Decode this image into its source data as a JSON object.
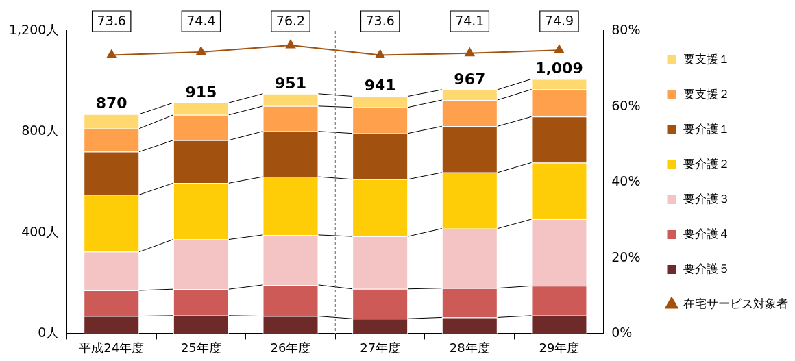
{
  "chart_data": {
    "type": "bar",
    "stacked": true,
    "categories": [
      "平成24年度",
      "25年度",
      "26年度",
      "27年度",
      "28年度",
      "29年度"
    ],
    "series": [
      {
        "name": "要介護５",
        "color": "#6e2a28",
        "values": [
          70,
          72,
          70,
          60,
          65,
          72
        ]
      },
      {
        "name": "要介護４",
        "color": "#cd5a57",
        "values": [
          102,
          105,
          124,
          118,
          116,
          118
        ]
      },
      {
        "name": "要介護３",
        "color": "#f4c4c4",
        "values": [
          153,
          197,
          198,
          208,
          236,
          264
        ]
      },
      {
        "name": "要介護２",
        "color": "#ffcc08",
        "values": [
          226,
          223,
          230,
          226,
          222,
          224
        ]
      },
      {
        "name": "要介護１",
        "color": "#a3510e",
        "values": [
          170,
          170,
          180,
          182,
          183,
          182
        ]
      },
      {
        "name": "要支援２",
        "color": "#ffa04d",
        "values": [
          92,
          100,
          100,
          103,
          104,
          108
        ]
      },
      {
        "name": "要支援１",
        "color": "#ffd970",
        "values": [
          57,
          48,
          49,
          44,
          41,
          41
        ]
      },
      {
        "name": "在宅サービス対象者",
        "type": "line",
        "axis": "y2",
        "color": "#a3510e",
        "marker": "triangle",
        "values": [
          73.6,
          74.4,
          76.2,
          73.6,
          74.1,
          74.9
        ],
        "value_labels": [
          "73.6",
          "74.4",
          "76.2",
          "73.6",
          "74.1",
          "74.9"
        ]
      }
    ],
    "totals": [
      "870",
      "915",
      "951",
      "941",
      "967",
      "1,009"
    ],
    "ylim": [
      0,
      1200
    ],
    "yticks": [
      {
        "value": 0,
        "label": "0人"
      },
      {
        "value": 400,
        "label": "400人"
      },
      {
        "value": 800,
        "label": "800人"
      },
      {
        "value": 1200,
        "label": "1,200人"
      }
    ],
    "y2lim": [
      0,
      80
    ],
    "y2ticks": [
      {
        "value": 0,
        "label": "0%"
      },
      {
        "value": 20,
        "label": "20%"
      },
      {
        "value": 40,
        "label": "40%"
      },
      {
        "value": 60,
        "label": "60%"
      },
      {
        "value": 80,
        "label": "80%"
      }
    ],
    "grid": false,
    "legend": "right"
  }
}
